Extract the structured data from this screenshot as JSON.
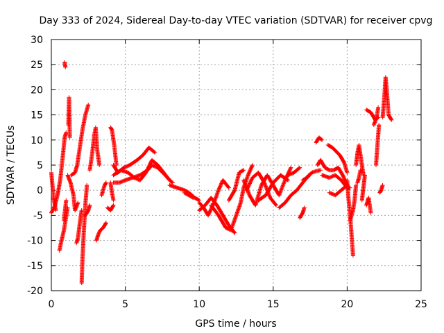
{
  "chart_data": {
    "type": "scatter",
    "title": "Day 333 of 2024, Sidereal Day-to-day VTEC variation (SDTVAR) for receiver cpvg",
    "xlabel": "GPS time / hours",
    "ylabel": "SDTVAR / TECUs",
    "xlim": [
      0,
      25
    ],
    "ylim": [
      -20,
      30
    ],
    "xticks": [
      0,
      5,
      10,
      15,
      20,
      25
    ],
    "yticks": [
      -20,
      -15,
      -10,
      -5,
      0,
      5,
      10,
      15,
      20,
      25,
      30
    ],
    "grid": true,
    "marker": "+",
    "color": "#ff0000",
    "series": [
      {
        "name": "s01",
        "x": [
          0.0,
          0.15,
          0.3
        ],
        "y": [
          3.5,
          -1.5,
          -4.0
        ]
      },
      {
        "name": "s02",
        "x": [
          0.0,
          0.25,
          0.45
        ],
        "y": [
          -4.5,
          -3.0,
          -0.5
        ]
      },
      {
        "name": "s03",
        "x": [
          0.45,
          0.6,
          0.8,
          0.9,
          1.0
        ],
        "y": [
          -0.5,
          2.0,
          7.5,
          10.5,
          11.5
        ]
      },
      {
        "name": "s04",
        "x": [
          0.55,
          0.65,
          0.85,
          1.1
        ],
        "y": [
          -12.0,
          -10.5,
          -8.0,
          -3.5
        ]
      },
      {
        "name": "s05",
        "x": [
          0.85,
          1.0
        ],
        "y": [
          -6.0,
          -2.0
        ]
      },
      {
        "name": "s06",
        "x": [
          0.9,
          0.95
        ],
        "y": [
          25.5,
          24.5
        ]
      },
      {
        "name": "s07",
        "x": [
          1.15,
          1.2,
          1.25
        ],
        "y": [
          13.0,
          18.5,
          10.5
        ]
      },
      {
        "name": "s08",
        "x": [
          1.1,
          1.3,
          1.5,
          1.6,
          1.8
        ],
        "y": [
          3.0,
          1.5,
          -1.0,
          -4.0,
          -2.5
        ]
      },
      {
        "name": "s09",
        "x": [
          1.35,
          1.6,
          1.75,
          1.9,
          2.1,
          2.3,
          2.5
        ],
        "y": [
          3.0,
          3.5,
          5.0,
          8.0,
          12.0,
          15.0,
          17.0
        ]
      },
      {
        "name": "s10",
        "x": [
          1.7,
          1.8,
          1.95,
          2.05
        ],
        "y": [
          -10.5,
          -9.5,
          -6.0,
          -4.0
        ]
      },
      {
        "name": "s11",
        "x": [
          2.05,
          2.1,
          2.2,
          2.3,
          2.4
        ],
        "y": [
          -18.5,
          -14.0,
          -8.0,
          -3.0,
          1.0
        ]
      },
      {
        "name": "s12",
        "x": [
          2.3,
          2.5,
          2.6
        ],
        "y": [
          -5.0,
          -4.0,
          -3.0
        ]
      },
      {
        "name": "s13",
        "x": [
          2.6,
          2.75,
          2.9,
          3.0,
          3.1,
          3.25
        ],
        "y": [
          4.0,
          7.0,
          11.0,
          12.5,
          8.0,
          5.0
        ]
      },
      {
        "name": "s14",
        "x": [
          3.05,
          3.15,
          3.3,
          3.5,
          3.7
        ],
        "y": [
          -10.0,
          -9.0,
          -8.0,
          -7.5,
          -6.5
        ]
      },
      {
        "name": "s15",
        "x": [
          3.4,
          3.6,
          3.7
        ],
        "y": [
          -1.0,
          1.0,
          1.5
        ]
      },
      {
        "name": "s16",
        "x": [
          3.8,
          4.0,
          4.2
        ],
        "y": [
          -3.5,
          -4.0,
          -3.0
        ]
      },
      {
        "name": "s17",
        "x": [
          4.0,
          4.1,
          4.25,
          4.4
        ],
        "y": [
          12.5,
          12.0,
          9.0,
          5.0
        ]
      },
      {
        "name": "s18",
        "x": [
          4.0,
          4.1,
          4.2
        ],
        "y": [
          1.5,
          -0.5,
          -2.0
        ]
      },
      {
        "name": "s19",
        "x": [
          4.2,
          4.5,
          4.9,
          5.3,
          5.8,
          6.2,
          6.6,
          7.0
        ],
        "y": [
          5.0,
          3.5,
          4.5,
          5.0,
          6.0,
          7.0,
          8.5,
          7.5
        ]
      },
      {
        "name": "s20",
        "x": [
          4.2,
          4.6,
          5.0,
          5.5,
          6.0,
          6.5,
          6.8,
          7.2,
          7.7,
          8.0,
          8.2
        ],
        "y": [
          1.5,
          1.5,
          2.0,
          2.5,
          3.0,
          4.0,
          5.0,
          4.5,
          3.0,
          2.0,
          1.5
        ]
      },
      {
        "name": "s21",
        "x": [
          4.2,
          4.7,
          5.2,
          5.6,
          6.0,
          6.4,
          6.8,
          7.2,
          7.6,
          8.0
        ],
        "y": [
          3.0,
          4.0,
          3.5,
          2.5,
          2.0,
          3.5,
          6.0,
          5.0,
          3.5,
          2.0
        ]
      },
      {
        "name": "s22",
        "x": [
          8.0,
          8.5,
          9.0,
          9.3,
          9.7,
          10.0
        ],
        "y": [
          1.0,
          0.5,
          0.0,
          -0.5,
          -1.5,
          -2.0
        ]
      },
      {
        "name": "s23",
        "x": [
          9.0,
          9.3,
          9.6
        ],
        "y": [
          -0.5,
          -1.0,
          -1.5
        ]
      },
      {
        "name": "s24",
        "x": [
          10.0,
          10.3,
          10.6,
          11.0,
          11.3,
          11.6,
          12.0
        ],
        "y": [
          -2.5,
          -3.5,
          -5.0,
          -2.5,
          0.0,
          2.0,
          0.5
        ]
      },
      {
        "name": "s25",
        "x": [
          10.0,
          10.4,
          10.8,
          11.2,
          11.6,
          12.0,
          12.4
        ],
        "y": [
          -4.0,
          -3.0,
          -1.5,
          -3.0,
          -5.0,
          -7.0,
          -8.5
        ]
      },
      {
        "name": "s26",
        "x": [
          10.8,
          11.3,
          11.8,
          12.2
        ],
        "y": [
          -3.0,
          -5.0,
          -7.5,
          -8.0
        ]
      },
      {
        "name": "s27",
        "x": [
          12.2,
          12.5,
          12.8,
          13.0,
          13.3,
          13.6
        ],
        "y": [
          -7.5,
          -5.0,
          -2.5,
          0.5,
          3.0,
          5.0
        ]
      },
      {
        "name": "s28",
        "x": [
          12.0,
          12.4,
          12.7,
          13.0
        ],
        "y": [
          -2.0,
          0.0,
          3.5,
          4.0
        ]
      },
      {
        "name": "s29",
        "x": [
          13.0,
          13.4,
          13.8,
          14.2,
          14.6,
          15.0,
          15.4,
          15.8,
          16.2
        ],
        "y": [
          2.0,
          -1.0,
          -3.0,
          1.0,
          3.0,
          1.0,
          -1.0,
          2.0,
          4.5
        ]
      },
      {
        "name": "s30",
        "x": [
          13.2,
          13.6,
          14.0,
          14.4,
          14.8,
          15.2
        ],
        "y": [
          0.0,
          2.5,
          3.5,
          1.5,
          -1.5,
          -3.0
        ]
      },
      {
        "name": "s31",
        "x": [
          14.0,
          14.5,
          15.0,
          15.5,
          16.0
        ],
        "y": [
          -2.0,
          -1.0,
          1.5,
          3.0,
          2.0
        ]
      },
      {
        "name": "s32",
        "x": [
          15.4,
          15.8,
          16.2,
          16.6,
          17.0,
          17.4
        ],
        "y": [
          -3.5,
          -2.5,
          -1.0,
          0.0,
          1.5,
          3.0
        ]
      },
      {
        "name": "s33",
        "x": [
          16.0,
          16.4,
          16.8
        ],
        "y": [
          3.0,
          3.5,
          4.5
        ]
      },
      {
        "name": "s34",
        "x": [
          16.8,
          17.0,
          17.1
        ],
        "y": [
          -5.5,
          -4.5,
          -3.5
        ]
      },
      {
        "name": "s35",
        "x": [
          17.0,
          17.3,
          17.6,
          17.9,
          18.2
        ],
        "y": [
          2.0,
          2.5,
          3.5,
          3.8,
          4.0
        ]
      },
      {
        "name": "s36",
        "x": [
          17.9,
          18.1,
          18.3
        ],
        "y": [
          9.5,
          10.5,
          10.0
        ]
      },
      {
        "name": "s37",
        "x": [
          18.0,
          18.2,
          18.5,
          18.8,
          19.1,
          19.4,
          19.7,
          20.0
        ],
        "y": [
          5.0,
          6.0,
          4.5,
          4.0,
          4.0,
          4.5,
          3.0,
          1.0
        ]
      },
      {
        "name": "s38",
        "x": [
          18.3,
          18.8,
          19.2,
          19.6,
          20.0,
          20.2
        ],
        "y": [
          3.0,
          2.5,
          3.0,
          2.0,
          0.5,
          0.5
        ]
      },
      {
        "name": "s39",
        "x": [
          18.7,
          19.0,
          19.5,
          19.8,
          20.0
        ],
        "y": [
          9.0,
          8.5,
          7.0,
          5.5,
          3.5
        ]
      },
      {
        "name": "s40",
        "x": [
          18.8,
          19.2,
          19.6,
          20.0
        ],
        "y": [
          -0.5,
          -1.0,
          0.0,
          1.0
        ]
      },
      {
        "name": "s41",
        "x": [
          20.0,
          20.1,
          20.2,
          20.3,
          20.4
        ],
        "y": [
          2.0,
          -2.0,
          -5.0,
          -9.0,
          -13.0
        ]
      },
      {
        "name": "s42",
        "x": [
          20.2,
          20.4,
          20.5,
          20.6
        ],
        "y": [
          -6.0,
          -4.0,
          -2.0,
          1.0
        ]
      },
      {
        "name": "s43",
        "x": [
          20.6,
          20.7,
          20.8,
          20.9,
          21.0,
          21.1
        ],
        "y": [
          5.0,
          7.5,
          9.0,
          7.0,
          5.0,
          3.0
        ]
      },
      {
        "name": "s44",
        "x": [
          20.7,
          20.8,
          20.9
        ],
        "y": [
          1.5,
          2.5,
          4.0
        ]
      },
      {
        "name": "s45",
        "x": [
          21.0,
          21.1,
          21.2
        ],
        "y": [
          -2.0,
          0.5,
          3.0
        ]
      },
      {
        "name": "s46",
        "x": [
          21.3,
          21.45,
          21.6
        ],
        "y": [
          -3.0,
          -1.5,
          -4.5
        ]
      },
      {
        "name": "s47",
        "x": [
          21.3,
          21.6,
          21.9,
          22.1
        ],
        "y": [
          16.0,
          15.5,
          14.0,
          14.5
        ]
      },
      {
        "name": "s48",
        "x": [
          21.8,
          22.0,
          22.1
        ],
        "y": [
          13.0,
          14.5,
          16.5
        ]
      },
      {
        "name": "s49",
        "x": [
          21.95,
          22.05,
          22.15
        ],
        "y": [
          5.0,
          9.0,
          13.0
        ]
      },
      {
        "name": "s50",
        "x": [
          22.2,
          22.3,
          22.4
        ],
        "y": [
          -0.5,
          0.0,
          1.0
        ]
      },
      {
        "name": "s51",
        "x": [
          22.4,
          22.5,
          22.6,
          22.7,
          22.8,
          23.0
        ],
        "y": [
          14.5,
          18.0,
          22.5,
          19.0,
          15.0,
          14.0
        ]
      }
    ]
  }
}
